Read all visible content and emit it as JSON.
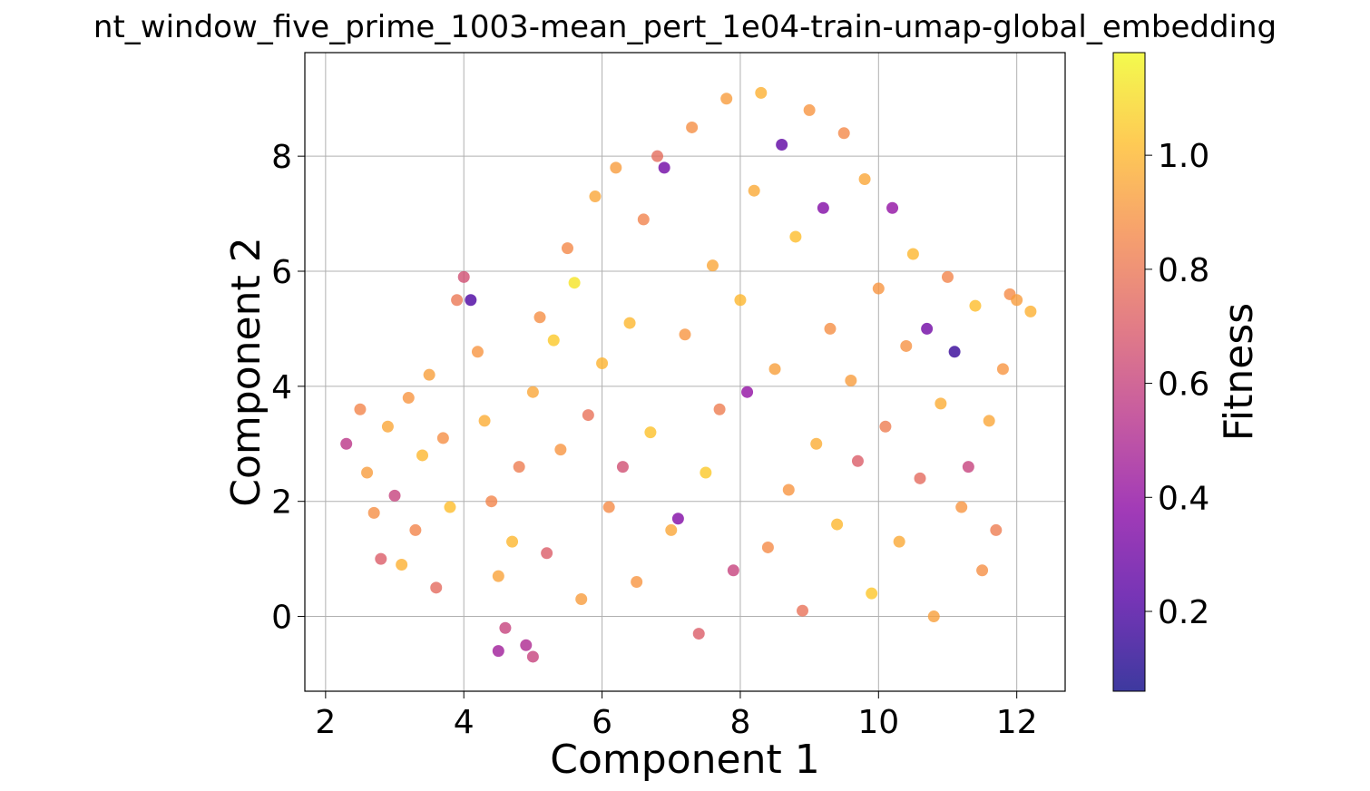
{
  "chart_data": {
    "type": "scatter",
    "title": "nt_window_five_prime_1003-mean_pert_1e04-train-umap-global_embedding",
    "xlabel": "Component 1",
    "ylabel": "Component 2",
    "xlim": [
      1.7,
      12.7
    ],
    "ylim": [
      -1.3,
      9.8
    ],
    "xticks": [
      2,
      4,
      6,
      8,
      10,
      12
    ],
    "xtick_labels": [
      "2",
      "4",
      "6",
      "8",
      "10",
      "12"
    ],
    "yticks": [
      0,
      2,
      4,
      6,
      8
    ],
    "ytick_labels": [
      "0",
      "2",
      "4",
      "6",
      "8"
    ],
    "grid": true,
    "colorbar": {
      "label": "Fitness",
      "colormap": "plasma",
      "range": [
        0.06,
        1.18
      ],
      "ticks": [
        0.2,
        0.4,
        0.6,
        0.8,
        1.0
      ],
      "tick_labels": [
        "0.2",
        "0.4",
        "0.6",
        "0.8",
        "1.0"
      ],
      "stops": [
        "#0d0887",
        "#5302a3",
        "#8b0aa5",
        "#b83289",
        "#db5c68",
        "#f48849",
        "#febd2a",
        "#f0f921"
      ],
      "alpha": 0.8
    },
    "series": [
      {
        "points": [
          [
            2.3,
            3.0,
            0.55
          ],
          [
            2.5,
            3.6,
            0.85
          ],
          [
            2.6,
            2.5,
            0.92
          ],
          [
            2.7,
            1.8,
            0.88
          ],
          [
            2.8,
            1.0,
            0.7
          ],
          [
            2.9,
            3.3,
            0.95
          ],
          [
            3.0,
            2.1,
            0.6
          ],
          [
            3.1,
            0.9,
            0.98
          ],
          [
            3.2,
            3.8,
            0.9
          ],
          [
            3.3,
            1.5,
            0.85
          ],
          [
            3.4,
            2.8,
            1.0
          ],
          [
            3.5,
            4.2,
            0.93
          ],
          [
            3.6,
            0.5,
            0.75
          ],
          [
            3.7,
            3.1,
            0.88
          ],
          [
            3.8,
            1.9,
            1.02
          ],
          [
            3.9,
            5.5,
            0.8
          ],
          [
            4.0,
            5.9,
            0.65
          ],
          [
            4.1,
            5.5,
            0.2
          ],
          [
            4.2,
            4.6,
            0.9
          ],
          [
            4.3,
            3.4,
            0.97
          ],
          [
            4.4,
            2.0,
            0.85
          ],
          [
            4.5,
            0.7,
            0.94
          ],
          [
            4.6,
            -0.2,
            0.6
          ],
          [
            4.7,
            1.3,
            1.0
          ],
          [
            4.8,
            2.6,
            0.82
          ],
          [
            4.9,
            -0.5,
            0.5
          ],
          [
            5.0,
            3.9,
            0.95
          ],
          [
            5.1,
            5.2,
            0.88
          ],
          [
            5.2,
            1.1,
            0.7
          ],
          [
            5.3,
            4.8,
            1.05
          ],
          [
            5.4,
            2.9,
            0.9
          ],
          [
            5.5,
            6.4,
            0.86
          ],
          [
            5.6,
            5.8,
            1.12
          ],
          [
            5.7,
            0.3,
            0.92
          ],
          [
            5.8,
            3.5,
            0.78
          ],
          [
            5.9,
            7.3,
            0.95
          ],
          [
            6.0,
            4.4,
            0.99
          ],
          [
            6.1,
            1.9,
            0.87
          ],
          [
            6.2,
            7.8,
            0.92
          ],
          [
            6.3,
            2.6,
            0.65
          ],
          [
            6.4,
            5.1,
            1.0
          ],
          [
            6.5,
            0.6,
            0.9
          ],
          [
            6.6,
            6.9,
            0.84
          ],
          [
            6.7,
            3.2,
            1.03
          ],
          [
            6.8,
            8.0,
            0.76
          ],
          [
            6.9,
            7.8,
            0.3
          ],
          [
            7.0,
            1.5,
            0.95
          ],
          [
            7.1,
            1.7,
            0.35
          ],
          [
            7.2,
            4.9,
            0.9
          ],
          [
            7.3,
            8.5,
            0.88
          ],
          [
            7.4,
            -0.3,
            0.7
          ],
          [
            7.5,
            2.5,
            1.05
          ],
          [
            7.6,
            6.1,
            0.95
          ],
          [
            7.7,
            3.6,
            0.82
          ],
          [
            7.8,
            9.0,
            0.92
          ],
          [
            7.9,
            0.8,
            0.6
          ],
          [
            8.0,
            5.5,
            1.0
          ],
          [
            8.1,
            3.9,
            0.4
          ],
          [
            8.2,
            7.4,
            0.96
          ],
          [
            8.3,
            9.1,
            0.98
          ],
          [
            8.4,
            1.2,
            0.87
          ],
          [
            8.5,
            4.3,
            0.93
          ],
          [
            8.6,
            8.2,
            0.25
          ],
          [
            8.7,
            2.2,
            0.9
          ],
          [
            8.8,
            6.6,
            1.02
          ],
          [
            8.9,
            0.1,
            0.78
          ],
          [
            9.0,
            8.8,
            0.9
          ],
          [
            9.1,
            3.0,
            0.97
          ],
          [
            9.2,
            7.1,
            0.35
          ],
          [
            9.3,
            5.0,
            0.88
          ],
          [
            9.4,
            1.6,
            1.0
          ],
          [
            9.5,
            8.4,
            0.86
          ],
          [
            9.6,
            4.1,
            0.92
          ],
          [
            9.7,
            2.7,
            0.7
          ],
          [
            9.8,
            7.6,
            0.95
          ],
          [
            9.9,
            0.4,
            1.04
          ],
          [
            10.0,
            5.7,
            0.9
          ],
          [
            10.1,
            3.3,
            0.82
          ],
          [
            10.2,
            7.1,
            0.4
          ],
          [
            10.3,
            1.3,
            0.96
          ],
          [
            10.4,
            4.7,
            0.89
          ],
          [
            10.5,
            6.3,
            1.0
          ],
          [
            10.6,
            2.4,
            0.75
          ],
          [
            10.7,
            5.0,
            0.3
          ],
          [
            10.8,
            0.0,
            0.93
          ],
          [
            10.9,
            3.7,
            0.97
          ],
          [
            11.0,
            5.9,
            0.85
          ],
          [
            11.1,
            4.6,
            0.15
          ],
          [
            11.2,
            1.9,
            0.9
          ],
          [
            11.3,
            2.6,
            0.6
          ],
          [
            11.4,
            5.4,
            1.02
          ],
          [
            11.5,
            0.8,
            0.88
          ],
          [
            11.6,
            3.4,
            0.95
          ],
          [
            11.7,
            1.5,
            0.82
          ],
          [
            11.8,
            4.3,
            0.9
          ],
          [
            11.9,
            5.6,
            0.87
          ],
          [
            12.0,
            5.5,
            0.92
          ],
          [
            12.2,
            5.3,
            0.98
          ],
          [
            5.0,
            -0.7,
            0.6
          ],
          [
            4.5,
            -0.6,
            0.45
          ]
        ]
      }
    ]
  }
}
